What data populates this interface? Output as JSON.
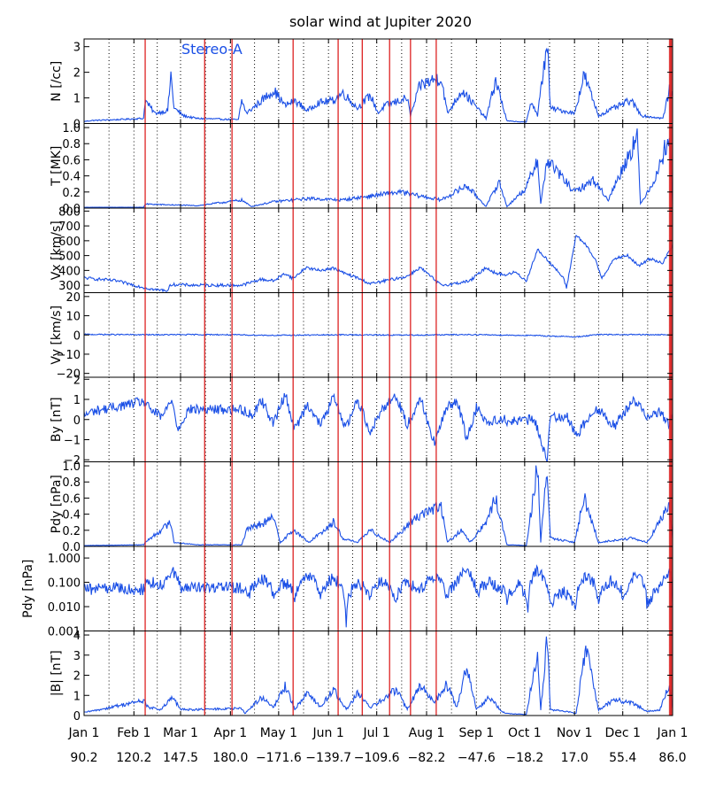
{
  "title": "solar wind at Jupiter 2020",
  "annotation": "Stereo-A",
  "x_tick_labels": [
    "Jan 1",
    "Feb 1",
    "Mar 1",
    "Apr 1",
    "May 1",
    "Jun 1",
    "Jul 1",
    "Aug 1",
    "Sep 1",
    "Oct 1",
    "Nov 1",
    "Dec 1",
    "Jan 1"
  ],
  "angle_labels": [
    "90.2",
    "120.2",
    "147.5",
    "180.0",
    "−171.6",
    "−139.7",
    "−109.6",
    "−82.2",
    "−47.6",
    "−18.2",
    "17.0",
    "55.4",
    "86.0"
  ],
  "colors": {
    "data": "#1a4fe6",
    "event_line": "#dd2222",
    "axis": "#000000",
    "grid": "#000000"
  },
  "chart_data": [
    {
      "type": "line",
      "ylabel": "N [/cc]",
      "ylim": [
        0,
        3.3
      ],
      "yticks": [
        0,
        1,
        2,
        3
      ],
      "tick_labels": [
        "0",
        "1",
        "2",
        "3"
      ],
      "x_range_days": [
        0,
        366
      ],
      "red_event_days": [
        38,
        75,
        92,
        130,
        158,
        173,
        190,
        203,
        219
      ],
      "dense_span_days": [
        38,
        70
      ],
      "points": [
        [
          0,
          0.08
        ],
        [
          5,
          0.12
        ],
        [
          20,
          0.15
        ],
        [
          37,
          0.2
        ],
        [
          38,
          0.9
        ],
        [
          44,
          0.4
        ],
        [
          52,
          0.5
        ],
        [
          54,
          1.9
        ],
        [
          56,
          0.6
        ],
        [
          62,
          0.3
        ],
        [
          70,
          0.2
        ],
        [
          96,
          0.15
        ],
        [
          98,
          0.9
        ],
        [
          101,
          0.4
        ],
        [
          118,
          1.3
        ],
        [
          125,
          0.7
        ],
        [
          131,
          0.9
        ],
        [
          139,
          0.5
        ],
        [
          145,
          0.8
        ],
        [
          155,
          0.9
        ],
        [
          161,
          1.2
        ],
        [
          170,
          0.6
        ],
        [
          178,
          1.1
        ],
        [
          183,
          0.4
        ],
        [
          187,
          0.7
        ],
        [
          201,
          1.0
        ],
        [
          203,
          0.3
        ],
        [
          209,
          1.5
        ],
        [
          222,
          1.8
        ],
        [
          226,
          0.4
        ],
        [
          235,
          1.3
        ],
        [
          250,
          0.2
        ],
        [
          256,
          1.7
        ],
        [
          263,
          0.1
        ],
        [
          275,
          0.05
        ],
        [
          278,
          0.9
        ],
        [
          282,
          0.3
        ],
        [
          288,
          3.2
        ],
        [
          290,
          0.6
        ],
        [
          305,
          0.4
        ],
        [
          311,
          1.9
        ],
        [
          320,
          0.3
        ],
        [
          326,
          0.5
        ],
        [
          340,
          0.9
        ],
        [
          347,
          0.3
        ],
        [
          360,
          0.2
        ],
        [
          364,
          1.3
        ],
        [
          366,
          1.0
        ]
      ]
    },
    {
      "type": "line",
      "ylabel": "T [MK]",
      "ylim": [
        0,
        1.05
      ],
      "yticks": [
        0,
        0.2,
        0.4,
        0.6,
        0.8,
        1.0
      ],
      "tick_labels": [
        "0.0",
        "0.2",
        "0.4",
        "0.6",
        "0.8",
        "1.0"
      ],
      "x_range_days": [
        0,
        366
      ],
      "points": [
        [
          0,
          0.01
        ],
        [
          37,
          0.01
        ],
        [
          38,
          0.05
        ],
        [
          70,
          0.03
        ],
        [
          98,
          0.1
        ],
        [
          104,
          0.02
        ],
        [
          118,
          0.08
        ],
        [
          140,
          0.12
        ],
        [
          160,
          0.1
        ],
        [
          178,
          0.15
        ],
        [
          196,
          0.2
        ],
        [
          209,
          0.15
        ],
        [
          222,
          0.1
        ],
        [
          238,
          0.28
        ],
        [
          250,
          0.02
        ],
        [
          258,
          0.33
        ],
        [
          263,
          0.02
        ],
        [
          275,
          0.25
        ],
        [
          282,
          0.62
        ],
        [
          284,
          0.05
        ],
        [
          288,
          0.6
        ],
        [
          305,
          0.2
        ],
        [
          317,
          0.35
        ],
        [
          326,
          0.1
        ],
        [
          344,
          0.9
        ],
        [
          346,
          0.05
        ],
        [
          356,
          0.4
        ],
        [
          364,
          0.92
        ],
        [
          366,
          0.05
        ]
      ]
    },
    {
      "type": "line",
      "ylabel": "Vx [km/s]",
      "ylim": [
        250,
        820
      ],
      "yticks": [
        300,
        400,
        500,
        600,
        700,
        800
      ],
      "tick_labels": [
        "300",
        "400",
        "500",
        "600",
        "700",
        "800"
      ],
      "x_range_days": [
        0,
        366
      ],
      "points": [
        [
          0,
          350
        ],
        [
          20,
          330
        ],
        [
          37,
          285
        ],
        [
          44,
          270
        ],
        [
          52,
          265
        ],
        [
          54,
          305
        ],
        [
          70,
          300
        ],
        [
          98,
          300
        ],
        [
          110,
          340
        ],
        [
          118,
          330
        ],
        [
          125,
          380
        ],
        [
          130,
          345
        ],
        [
          138,
          420
        ],
        [
          146,
          400
        ],
        [
          155,
          415
        ],
        [
          162,
          380
        ],
        [
          170,
          350
        ],
        [
          178,
          310
        ],
        [
          183,
          320
        ],
        [
          187,
          330
        ],
        [
          201,
          360
        ],
        [
          209,
          420
        ],
        [
          222,
          300
        ],
        [
          230,
          310
        ],
        [
          240,
          330
        ],
        [
          250,
          420
        ],
        [
          256,
          380
        ],
        [
          263,
          370
        ],
        [
          268,
          390
        ],
        [
          275,
          330
        ],
        [
          282,
          540
        ],
        [
          290,
          450
        ],
        [
          298,
          350
        ],
        [
          300,
          280
        ],
        [
          306,
          640
        ],
        [
          312,
          570
        ],
        [
          318,
          470
        ],
        [
          322,
          350
        ],
        [
          330,
          480
        ],
        [
          338,
          500
        ],
        [
          345,
          430
        ],
        [
          352,
          480
        ],
        [
          360,
          450
        ],
        [
          366,
          570
        ]
      ]
    },
    {
      "type": "line",
      "ylabel": "Vy [km/s]",
      "ylim": [
        -22,
        22
      ],
      "yticks": [
        -20,
        -10,
        0,
        10,
        20
      ],
      "tick_labels": [
        "−20",
        "−10",
        "0",
        "10",
        "20"
      ],
      "x_range_days": [
        0,
        366
      ],
      "points": [
        [
          0,
          0.3
        ],
        [
          40,
          0.1
        ],
        [
          80,
          0.2
        ],
        [
          120,
          -0.2
        ],
        [
          160,
          0.1
        ],
        [
          200,
          -0.1
        ],
        [
          240,
          0.2
        ],
        [
          280,
          -0.3
        ],
        [
          306,
          -1.0
        ],
        [
          320,
          0.2
        ],
        [
          366,
          0.1
        ]
      ]
    },
    {
      "type": "line",
      "ylabel": "By [nT]",
      "ylim": [
        -2.1,
        2.1
      ],
      "yticks": [
        -2,
        -1,
        0,
        1,
        2
      ],
      "tick_labels": [
        "−2",
        "−1",
        "0",
        "1",
        "2"
      ],
      "x_range_days": [
        0,
        366
      ],
      "points": [
        [
          0,
          0.2
        ],
        [
          5,
          0.4
        ],
        [
          37,
          0.9
        ],
        [
          40,
          0.6
        ],
        [
          48,
          0.1
        ],
        [
          55,
          1.0
        ],
        [
          58,
          -0.5
        ],
        [
          65,
          0.5
        ],
        [
          70,
          0.5
        ],
        [
          98,
          0.5
        ],
        [
          105,
          0.2
        ],
        [
          110,
          1.0
        ],
        [
          118,
          -0.2
        ],
        [
          125,
          1.3
        ],
        [
          131,
          -0.5
        ],
        [
          139,
          0.8
        ],
        [
          147,
          -0.3
        ],
        [
          155,
          1.1
        ],
        [
          163,
          -0.4
        ],
        [
          170,
          1.0
        ],
        [
          178,
          -0.6
        ],
        [
          186,
          0.6
        ],
        [
          194,
          1.2
        ],
        [
          201,
          -0.3
        ],
        [
          209,
          1.1
        ],
        [
          218,
          -1.2
        ],
        [
          225,
          0.5
        ],
        [
          232,
          1.0
        ],
        [
          238,
          -1.0
        ],
        [
          244,
          0.6
        ],
        [
          252,
          -0.2
        ],
        [
          260,
          0.1
        ],
        [
          263,
          -0.1
        ],
        [
          280,
          0.0
        ],
        [
          288,
          -2.0
        ],
        [
          290,
          0.1
        ],
        [
          300,
          0.2
        ],
        [
          306,
          -0.8
        ],
        [
          318,
          0.6
        ],
        [
          330,
          -0.3
        ],
        [
          342,
          1.0
        ],
        [
          350,
          0.2
        ],
        [
          358,
          0.4
        ],
        [
          364,
          -0.3
        ],
        [
          366,
          0.4
        ]
      ]
    },
    {
      "type": "line",
      "ylabel": "Pdy [nPa]",
      "ylim": [
        0,
        1.05
      ],
      "yticks": [
        0,
        0.2,
        0.4,
        0.6,
        0.8,
        1.0
      ],
      "tick_labels": [
        "0.0",
        "0.2",
        "0.4",
        "0.6",
        "0.8",
        "1.0"
      ],
      "x_range_days": [
        0,
        366
      ],
      "points": [
        [
          0,
          0.01
        ],
        [
          37,
          0.02
        ],
        [
          38,
          0.05
        ],
        [
          54,
          0.3
        ],
        [
          56,
          0.05
        ],
        [
          70,
          0.02
        ],
        [
          98,
          0.02
        ],
        [
          101,
          0.2
        ],
        [
          118,
          0.35
        ],
        [
          122,
          0.05
        ],
        [
          130,
          0.2
        ],
        [
          140,
          0.05
        ],
        [
          155,
          0.3
        ],
        [
          161,
          0.1
        ],
        [
          170,
          0.05
        ],
        [
          178,
          0.2
        ],
        [
          190,
          0.05
        ],
        [
          209,
          0.4
        ],
        [
          222,
          0.5
        ],
        [
          226,
          0.05
        ],
        [
          235,
          0.2
        ],
        [
          240,
          0.05
        ],
        [
          250,
          0.3
        ],
        [
          256,
          0.6
        ],
        [
          263,
          0.02
        ],
        [
          275,
          0.01
        ],
        [
          282,
          1.0
        ],
        [
          284,
          0.05
        ],
        [
          288,
          1.0
        ],
        [
          290,
          0.1
        ],
        [
          305,
          0.05
        ],
        [
          311,
          0.6
        ],
        [
          320,
          0.05
        ],
        [
          340,
          0.1
        ],
        [
          350,
          0.05
        ],
        [
          364,
          0.5
        ],
        [
          366,
          0.1
        ]
      ]
    },
    {
      "type": "line",
      "ylabel": "Pdy [nPa]",
      "yscale": "log",
      "ylim": [
        0.001,
        3.0
      ],
      "yticks": [
        0.001,
        0.01,
        0.1,
        1.0
      ],
      "tick_labels": [
        "0.001",
        "0.010",
        "0.100",
        "1.000"
      ],
      "x_range_days": [
        0,
        366
      ],
      "points": [
        [
          0,
          0.05
        ],
        [
          20,
          0.06
        ],
        [
          37,
          0.05
        ],
        [
          40,
          0.1
        ],
        [
          50,
          0.08
        ],
        [
          54,
          0.3
        ],
        [
          60,
          0.06
        ],
        [
          70,
          0.06
        ],
        [
          98,
          0.06
        ],
        [
          102,
          0.02
        ],
        [
          110,
          0.15
        ],
        [
          118,
          0.03
        ],
        [
          125,
          0.1
        ],
        [
          131,
          0.02
        ],
        [
          139,
          0.2
        ],
        [
          147,
          0.015
        ],
        [
          155,
          0.15
        ],
        [
          163,
          0.002
        ],
        [
          170,
          0.1
        ],
        [
          178,
          0.02
        ],
        [
          186,
          0.12
        ],
        [
          194,
          0.015
        ],
        [
          201,
          0.1
        ],
        [
          209,
          0.04
        ],
        [
          218,
          0.2
        ],
        [
          225,
          0.02
        ],
        [
          232,
          0.1
        ],
        [
          238,
          0.3
        ],
        [
          244,
          0.03
        ],
        [
          252,
          0.1
        ],
        [
          260,
          0.05
        ],
        [
          263,
          0.02
        ],
        [
          270,
          0.08
        ],
        [
          276,
          0.008
        ],
        [
          282,
          0.3
        ],
        [
          290,
          0.01
        ],
        [
          298,
          0.04
        ],
        [
          306,
          0.008
        ],
        [
          312,
          0.2
        ],
        [
          320,
          0.015
        ],
        [
          328,
          0.12
        ],
        [
          336,
          0.02
        ],
        [
          344,
          0.2
        ],
        [
          350,
          0.012
        ],
        [
          358,
          0.05
        ],
        [
          364,
          0.3
        ],
        [
          366,
          0.008
        ]
      ]
    },
    {
      "type": "line",
      "ylabel": "|B| [nT]",
      "ylim": [
        0,
        4.2
      ],
      "yticks": [
        0,
        1,
        2,
        3,
        4
      ],
      "tick_labels": [
        "0",
        "1",
        "2",
        "3",
        "4"
      ],
      "x_range_days": [
        0,
        366
      ],
      "points": [
        [
          0,
          0.15
        ],
        [
          10,
          0.3
        ],
        [
          37,
          0.75
        ],
        [
          40,
          0.4
        ],
        [
          48,
          0.3
        ],
        [
          55,
          0.9
        ],
        [
          60,
          0.3
        ],
        [
          70,
          0.3
        ],
        [
          98,
          0.35
        ],
        [
          100,
          0.1
        ],
        [
          110,
          0.9
        ],
        [
          118,
          0.4
        ],
        [
          125,
          1.5
        ],
        [
          131,
          0.3
        ],
        [
          139,
          1.2
        ],
        [
          147,
          0.4
        ],
        [
          155,
          1.3
        ],
        [
          163,
          0.3
        ],
        [
          170,
          1.1
        ],
        [
          178,
          0.4
        ],
        [
          186,
          0.8
        ],
        [
          194,
          1.3
        ],
        [
          201,
          0.3
        ],
        [
          209,
          1.5
        ],
        [
          218,
          0.6
        ],
        [
          225,
          1.6
        ],
        [
          232,
          0.4
        ],
        [
          238,
          2.5
        ],
        [
          244,
          0.3
        ],
        [
          252,
          0.9
        ],
        [
          260,
          0.2
        ],
        [
          263,
          0.1
        ],
        [
          275,
          0.05
        ],
        [
          282,
          3.2
        ],
        [
          284,
          0.3
        ],
        [
          288,
          4.0
        ],
        [
          290,
          0.3
        ],
        [
          300,
          0.2
        ],
        [
          306,
          0.1
        ],
        [
          312,
          3.4
        ],
        [
          320,
          0.3
        ],
        [
          330,
          0.8
        ],
        [
          342,
          0.6
        ],
        [
          350,
          0.2
        ],
        [
          358,
          0.3
        ],
        [
          364,
          1.5
        ],
        [
          366,
          0.3
        ]
      ]
    }
  ]
}
